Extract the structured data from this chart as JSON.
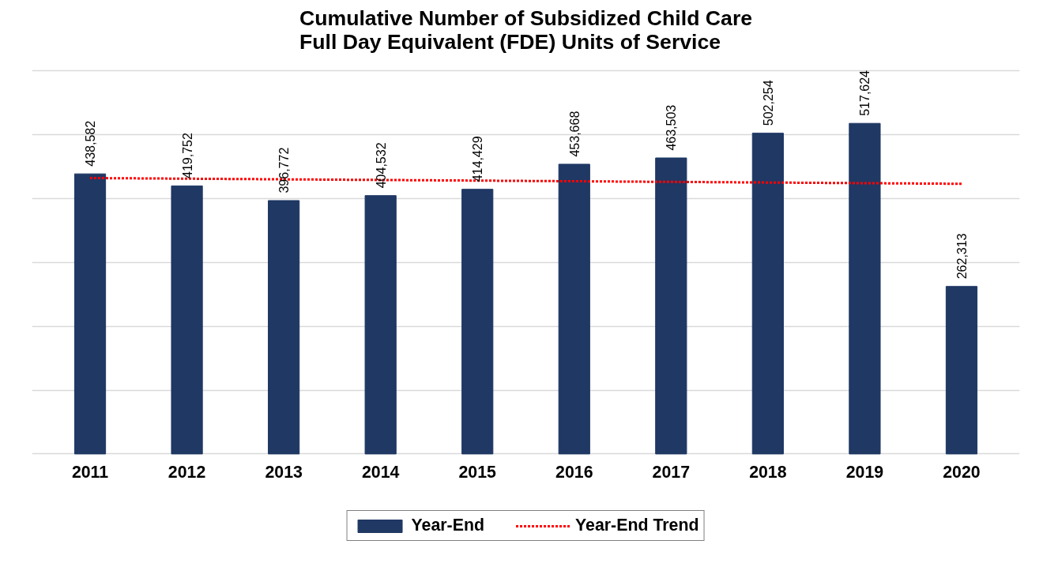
{
  "chart_data": {
    "type": "bar",
    "title": "Cumulative Number of Subsidized Child Care\nFull Day Equivalent (FDE) Units of Service",
    "categories": [
      "2011",
      "2012",
      "2013",
      "2014",
      "2015",
      "2016",
      "2017",
      "2018",
      "2019",
      "2020"
    ],
    "series": [
      {
        "name": "Year-End",
        "color": "#1f3864",
        "values": [
          438582,
          419752,
          396772,
          404532,
          414429,
          453668,
          463503,
          502254,
          517624,
          262313
        ],
        "value_labels": [
          "438,582",
          "419,752",
          "396,772",
          "404,532",
          "414,429",
          "453,668",
          "463,503",
          "502,254",
          "517,624",
          "262,313"
        ]
      },
      {
        "name": "Year-End Trend",
        "type": "line",
        "color": "#ff0000",
        "line_style": "dotted",
        "values": [
          432000,
          431000,
          430000,
          429000,
          428000,
          427000,
          426000,
          425000,
          424000,
          423000
        ]
      }
    ],
    "tick_labels": "x",
    "grid": "y",
    "legend": "bottom"
  }
}
